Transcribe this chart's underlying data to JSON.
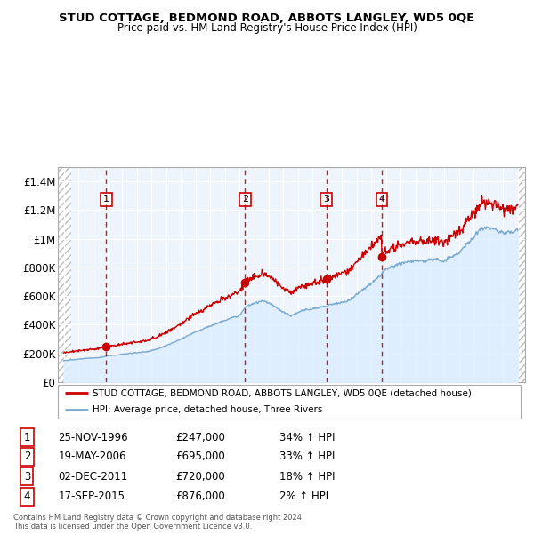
{
  "title": "STUD COTTAGE, BEDMOND ROAD, ABBOTS LANGLEY, WD5 0QE",
  "subtitle": "Price paid vs. HM Land Registry's House Price Index (HPI)",
  "ylim": [
    0,
    1500000
  ],
  "yticks": [
    0,
    200000,
    400000,
    600000,
    800000,
    1000000,
    1200000,
    1400000
  ],
  "ytick_labels": [
    "£0",
    "£200K",
    "£400K",
    "£600K",
    "£800K",
    "£1M",
    "£1.2M",
    "£1.4M"
  ],
  "xlim_start": 1993.6,
  "xlim_end": 2025.5,
  "sale_dates": [
    1996.9,
    2006.38,
    2011.92,
    2015.71
  ],
  "sale_prices": [
    247000,
    695000,
    720000,
    876000
  ],
  "sale_labels": [
    "1",
    "2",
    "3",
    "4"
  ],
  "sale_color": "#cc0000",
  "hpi_color": "#7aaad0",
  "hpi_fill_color": "#ddeeff",
  "legend_entries": [
    "STUD COTTAGE, BEDMOND ROAD, ABBOTS LANGLEY, WD5 0QE (detached house)",
    "HPI: Average price, detached house, Three Rivers"
  ],
  "table_data": [
    [
      "1",
      "25-NOV-1996",
      "£247,000",
      "34% ↑ HPI"
    ],
    [
      "2",
      "19-MAY-2006",
      "£695,000",
      "33% ↑ HPI"
    ],
    [
      "3",
      "02-DEC-2011",
      "£720,000",
      "18% ↑ HPI"
    ],
    [
      "4",
      "17-SEP-2015",
      "£876,000",
      "2% ↑ HPI"
    ]
  ],
  "footer": "Contains HM Land Registry data © Crown copyright and database right 2024.\nThis data is licensed under the Open Government Licence v3.0.",
  "grid_color": "#cccccc",
  "vline_color": "#cc0000",
  "box_color": "#cc0000",
  "hatch_color": "#bbbbbb"
}
